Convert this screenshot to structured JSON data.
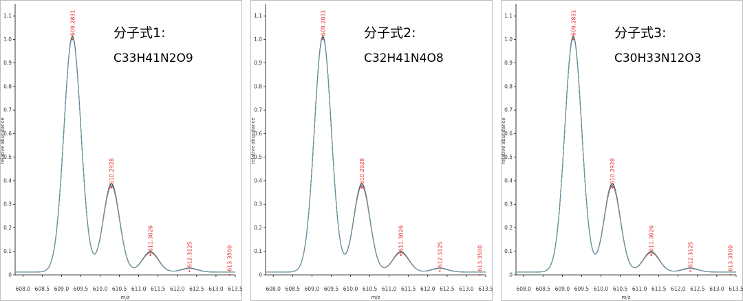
{
  "chart_data": [
    {
      "type": "line",
      "formula_title": "分子式1:",
      "formula": "C33H41N2O9",
      "xlabel": "m/z",
      "ylabel": "relative abundance",
      "xlim": [
        607.8,
        613.5
      ],
      "ylim": [
        0,
        1.15
      ],
      "x_ticks": [
        "608.0",
        "608.5",
        "609.0",
        "609.5",
        "610.0",
        "610.5",
        "611.0",
        "611.5",
        "612.0",
        "612.5",
        "613.0",
        "613.5"
      ],
      "y_ticks": [
        "0",
        "0.1",
        "0.2",
        "0.3",
        "0.4",
        "0.5",
        "0.6",
        "0.7",
        "0.8",
        "0.9",
        "1.0",
        "1.1"
      ],
      "peaks": [
        {
          "label": "609.2831",
          "x": 609.2831,
          "y": 1.0
        },
        {
          "label": "610.2928",
          "x": 610.2928,
          "y": 0.37
        },
        {
          "label": "611.3026",
          "x": 611.3026,
          "y": 0.084
        },
        {
          "label": "612.3125",
          "x": 612.3125,
          "y": 0.016
        },
        {
          "label": "613.3500",
          "x": 613.35,
          "y": 0.0
        }
      ],
      "series": [
        {
          "color": "#e8322e",
          "peak_values": [
            1.0,
            0.365,
            0.082,
            0.015
          ]
        },
        {
          "color": "#2b2b2b",
          "peak_values": [
            1.0,
            0.375,
            0.086,
            0.017
          ]
        },
        {
          "color": "#5fa8b8",
          "peak_values": [
            0.995,
            0.37,
            0.084,
            0.016
          ]
        }
      ]
    },
    {
      "type": "line",
      "formula_title": "分子式2:",
      "formula": "C32H41N4O8",
      "xlabel": "m/z",
      "ylabel": "relative abundance",
      "xlim": [
        607.8,
        613.5
      ],
      "ylim": [
        0,
        1.15
      ],
      "x_ticks": [
        "608.0",
        "608.5",
        "609.0",
        "609.5",
        "610.0",
        "610.5",
        "611.0",
        "611.5",
        "612.0",
        "612.5",
        "613.0",
        "613.5"
      ],
      "y_ticks": [
        "0",
        "0.1",
        "0.2",
        "0.3",
        "0.4",
        "0.5",
        "0.6",
        "0.7",
        "0.8",
        "0.9",
        "1.0",
        "1.1"
      ],
      "peaks": [
        {
          "label": "609.2831",
          "x": 609.2831,
          "y": 1.0
        },
        {
          "label": "610.2928",
          "x": 610.2928,
          "y": 0.37
        },
        {
          "label": "611.3026",
          "x": 611.3026,
          "y": 0.084
        },
        {
          "label": "612.3125",
          "x": 612.3125,
          "y": 0.016
        },
        {
          "label": "613.3500",
          "x": 613.35,
          "y": 0.0
        }
      ],
      "series": [
        {
          "color": "#e8322e",
          "peak_values": [
            1.0,
            0.365,
            0.082,
            0.015
          ]
        },
        {
          "color": "#2b2b2b",
          "peak_values": [
            1.0,
            0.375,
            0.086,
            0.017
          ]
        },
        {
          "color": "#5fa8b8",
          "peak_values": [
            0.995,
            0.37,
            0.084,
            0.016
          ]
        }
      ]
    },
    {
      "type": "line",
      "formula_title": "分子式3:",
      "formula": "C30H33N12O3",
      "xlabel": "m/z",
      "ylabel": "relative abundance",
      "xlim": [
        607.8,
        613.5
      ],
      "ylim": [
        0,
        1.15
      ],
      "x_ticks": [
        "608.0",
        "608.5",
        "609.0",
        "609.5",
        "610.0",
        "610.5",
        "611.0",
        "611.5",
        "612.0",
        "612.5",
        "613.0",
        "613.5"
      ],
      "y_ticks": [
        "0",
        "0.1",
        "0.2",
        "0.3",
        "0.4",
        "0.5",
        "0.6",
        "0.7",
        "0.8",
        "0.9",
        "1.0",
        "1.1"
      ],
      "peaks": [
        {
          "label": "609.2831",
          "x": 609.2831,
          "y": 1.0
        },
        {
          "label": "610.2928",
          "x": 610.2928,
          "y": 0.37
        },
        {
          "label": "611.3026",
          "x": 611.3026,
          "y": 0.084
        },
        {
          "label": "612.3125",
          "x": 612.3125,
          "y": 0.016
        },
        {
          "label": "613.3500",
          "x": 613.35,
          "y": 0.0
        }
      ],
      "series": [
        {
          "color": "#e8322e",
          "peak_values": [
            1.0,
            0.365,
            0.082,
            0.015
          ]
        },
        {
          "color": "#2b2b2b",
          "peak_values": [
            1.0,
            0.375,
            0.086,
            0.017
          ]
        },
        {
          "color": "#5fa8b8",
          "peak_values": [
            0.995,
            0.37,
            0.084,
            0.016
          ]
        }
      ]
    }
  ]
}
